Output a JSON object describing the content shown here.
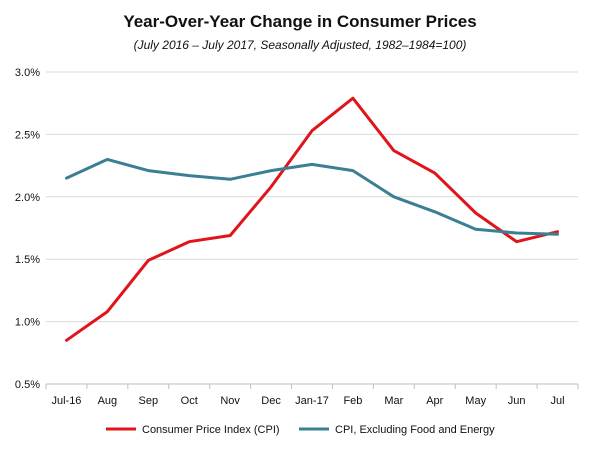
{
  "chart_data": {
    "type": "line",
    "title": "Year-Over-Year Change in Consumer Prices",
    "subtitle": "(July 2016 – July 2017,  Seasonally Adjusted, 1982–1984=100)",
    "categories": [
      "Jul-16",
      "Aug",
      "Sep",
      "Oct",
      "Nov",
      "Dec",
      "Jan-17",
      "Feb",
      "Mar",
      "Apr",
      "May",
      "Jun",
      "Jul"
    ],
    "ylim": [
      0.5,
      3.0
    ],
    "yticks": [
      0.5,
      1.0,
      1.5,
      2.0,
      2.5,
      3.0
    ],
    "ytick_labels": [
      "0.5%",
      "1.0%",
      "1.5%",
      "2.0%",
      "2.5%",
      "3.0%"
    ],
    "grid": true,
    "legend_position": "bottom",
    "series": [
      {
        "name": "Consumer Price Index (CPI)",
        "color": "#e0141b",
        "values": [
          0.85,
          1.08,
          1.49,
          1.64,
          1.69,
          2.08,
          2.53,
          2.79,
          2.37,
          2.19,
          1.87,
          1.64,
          1.72
        ]
      },
      {
        "name": "CPI, Excluding Food and Energy",
        "color": "#3a7f94",
        "values": [
          2.15,
          2.3,
          2.21,
          2.17,
          2.14,
          2.21,
          2.26,
          2.21,
          2.0,
          1.88,
          1.74,
          1.71,
          1.7
        ]
      }
    ]
  }
}
